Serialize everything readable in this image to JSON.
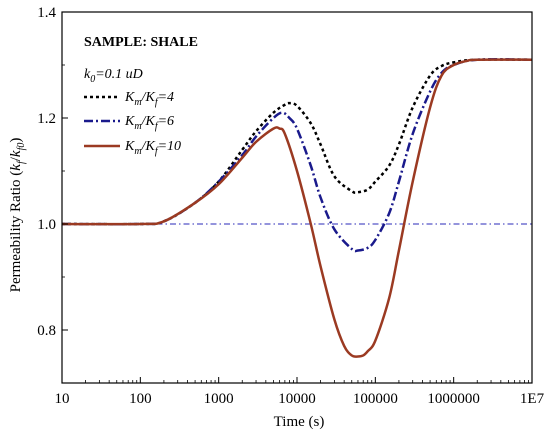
{
  "chart_data": {
    "type": "line",
    "xscale": "log",
    "xlim": [
      10,
      10000000
    ],
    "ylim": [
      0.7,
      1.4
    ],
    "xlabel": "Time (s)",
    "ylabel": "Permeability Ratio (k_f/k_f0)",
    "ylabel_parts": {
      "main": "Permeability Ratio (",
      "k1": "k",
      "s1": "f",
      "slash": "/",
      "k2": "k",
      "s2": "f0",
      "close": ")"
    },
    "x_ticks": [
      10,
      100,
      1000,
      10000,
      100000,
      1000000,
      10000000
    ],
    "x_tick_labels": [
      "10",
      "100",
      "1000",
      "10000",
      "100000",
      "1000000",
      "1E7"
    ],
    "y_ticks": [
      0.8,
      1.0,
      1.2,
      1.4
    ],
    "y_tick_labels": [
      "0.8",
      "1.0",
      "1.2",
      "1.4"
    ],
    "grid": false,
    "reference_line": {
      "y": 1.0,
      "color": "#2a2ab8",
      "style": "dash-dot"
    },
    "annotations": {
      "sample": "SAMPLE: SHALE",
      "k0": {
        "k": "k",
        "sub": "0",
        "rest": "=0.1 uD"
      }
    },
    "legend_position": "upper-left",
    "series": [
      {
        "name": "Km/Kf=4",
        "label": {
          "K1": "K",
          "s1": "m",
          "slash": "/K",
          "s2": "f",
          "val": "=4"
        },
        "color": "#000000",
        "style": "dotted",
        "points": [
          [
            10,
            1.0
          ],
          [
            100,
            1.0
          ],
          [
            200,
            1.005
          ],
          [
            500,
            1.04
          ],
          [
            1000,
            1.08
          ],
          [
            2000,
            1.14
          ],
          [
            3000,
            1.175
          ],
          [
            5000,
            1.21
          ],
          [
            7000,
            1.225
          ],
          [
            8000,
            1.228
          ],
          [
            10000,
            1.223
          ],
          [
            15000,
            1.19
          ],
          [
            20000,
            1.15
          ],
          [
            30000,
            1.09
          ],
          [
            50000,
            1.062
          ],
          [
            60000,
            1.06
          ],
          [
            80000,
            1.065
          ],
          [
            100000,
            1.08
          ],
          [
            150000,
            1.11
          ],
          [
            200000,
            1.15
          ],
          [
            300000,
            1.22
          ],
          [
            500000,
            1.28
          ],
          [
            700000,
            1.298
          ],
          [
            1000000,
            1.305
          ],
          [
            2000000,
            1.31
          ],
          [
            10000000,
            1.31
          ]
        ]
      },
      {
        "name": "Km/Kf=6",
        "label": {
          "K1": "K",
          "s1": "m",
          "slash": "/K",
          "s2": "f",
          "val": "=6"
        },
        "color": "#1a1a8c",
        "style": "dash-dot",
        "points": [
          [
            10,
            1.0
          ],
          [
            100,
            1.0
          ],
          [
            200,
            1.005
          ],
          [
            500,
            1.04
          ],
          [
            1000,
            1.08
          ],
          [
            2000,
            1.13
          ],
          [
            3000,
            1.165
          ],
          [
            5000,
            1.2
          ],
          [
            6500,
            1.21
          ],
          [
            8000,
            1.2
          ],
          [
            10000,
            1.18
          ],
          [
            15000,
            1.11
          ],
          [
            20000,
            1.05
          ],
          [
            30000,
            0.99
          ],
          [
            50000,
            0.953
          ],
          [
            60000,
            0.95
          ],
          [
            80000,
            0.955
          ],
          [
            100000,
            0.97
          ],
          [
            150000,
            1.02
          ],
          [
            200000,
            1.08
          ],
          [
            300000,
            1.17
          ],
          [
            500000,
            1.25
          ],
          [
            700000,
            1.285
          ],
          [
            1000000,
            1.3
          ],
          [
            2000000,
            1.31
          ],
          [
            10000000,
            1.31
          ]
        ]
      },
      {
        "name": "Km/Kf=10",
        "label": {
          "K1": "K",
          "s1": "m",
          "slash": "/K",
          "s2": "f",
          "val": "=10"
        },
        "color": "#9b3a22",
        "style": "solid",
        "points": [
          [
            10,
            1.0
          ],
          [
            100,
            1.0
          ],
          [
            200,
            1.005
          ],
          [
            500,
            1.04
          ],
          [
            1000,
            1.075
          ],
          [
            2000,
            1.125
          ],
          [
            3000,
            1.155
          ],
          [
            5000,
            1.18
          ],
          [
            6000,
            1.18
          ],
          [
            7000,
            1.17
          ],
          [
            10000,
            1.1
          ],
          [
            15000,
            1.0
          ],
          [
            20000,
            0.92
          ],
          [
            30000,
            0.82
          ],
          [
            40000,
            0.77
          ],
          [
            50000,
            0.752
          ],
          [
            60000,
            0.75
          ],
          [
            70000,
            0.752
          ],
          [
            80000,
            0.76
          ],
          [
            100000,
            0.78
          ],
          [
            150000,
            0.86
          ],
          [
            200000,
            0.95
          ],
          [
            300000,
            1.08
          ],
          [
            500000,
            1.22
          ],
          [
            700000,
            1.28
          ],
          [
            1000000,
            1.3
          ],
          [
            1500000,
            1.308
          ],
          [
            2000000,
            1.31
          ],
          [
            10000000,
            1.31
          ]
        ]
      }
    ]
  }
}
